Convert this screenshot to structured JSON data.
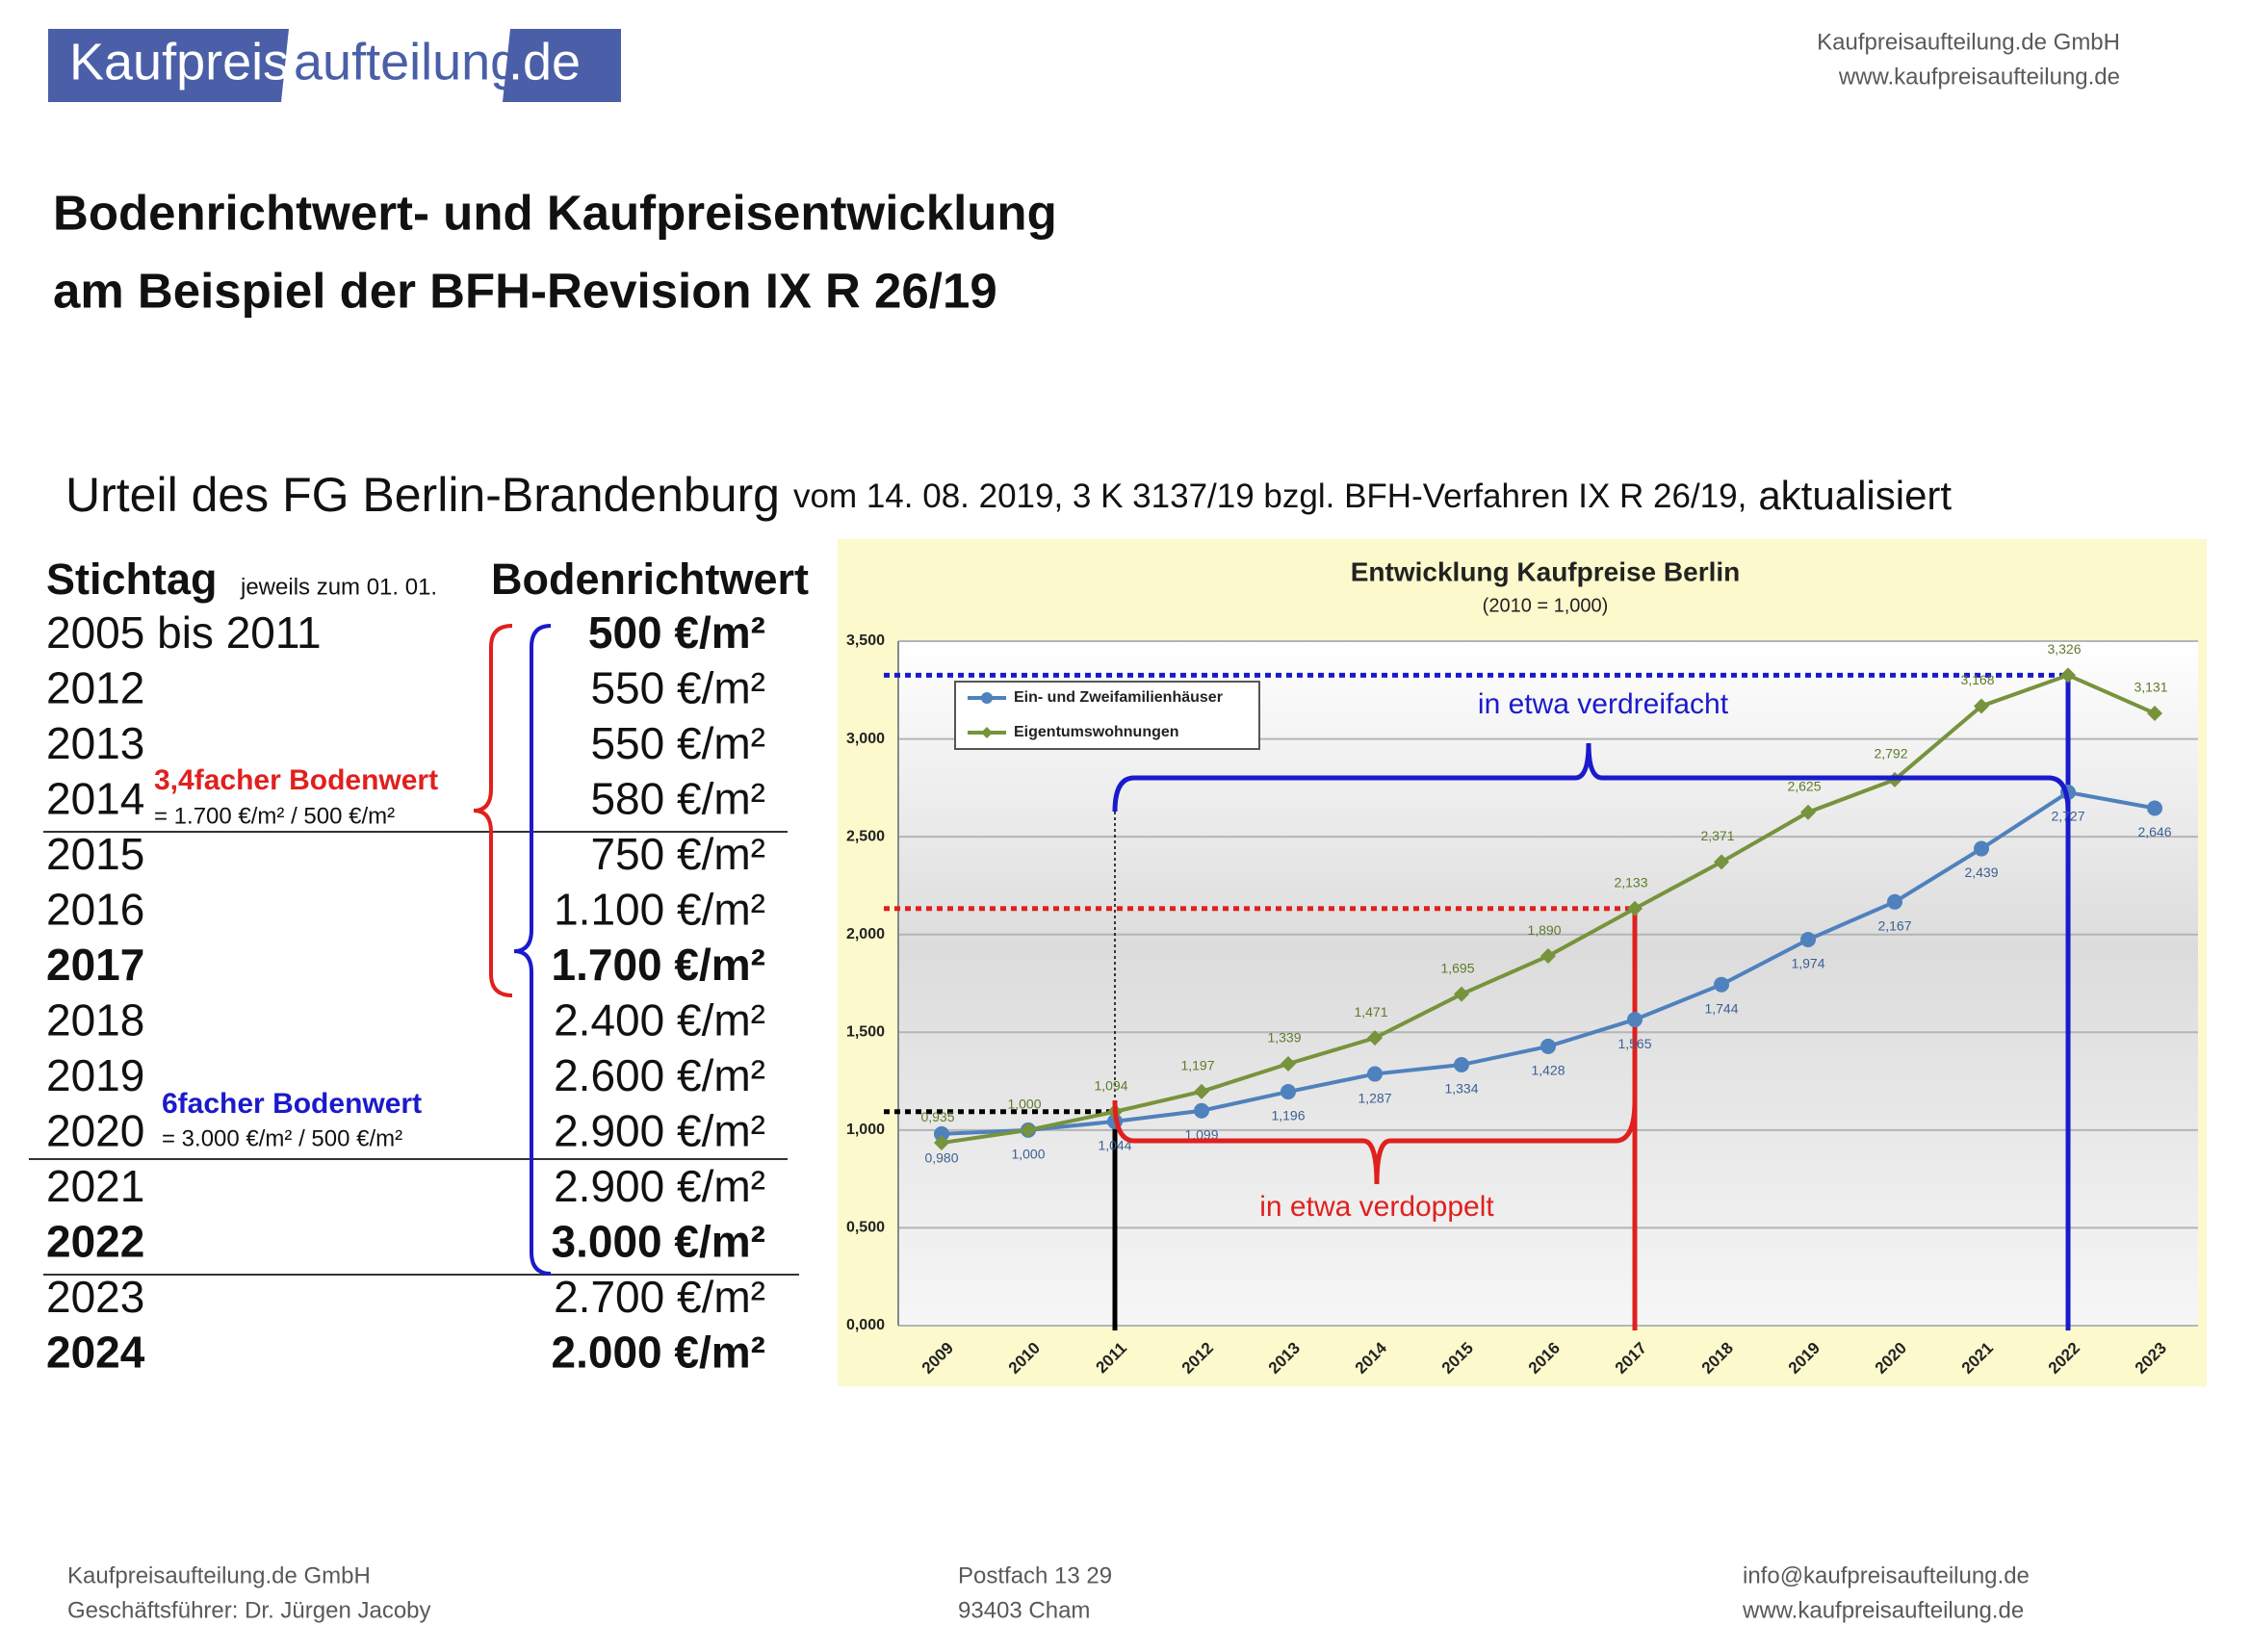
{
  "header": {
    "logo": [
      "Kaufpreis",
      "aufteilung",
      ".de"
    ],
    "company": "Kaufpreisaufteilung.de GmbH",
    "website": "www.kaufpreisaufteilung.de"
  },
  "title": [
    "Bodenrichtwert- und Kaufpreisentwicklung",
    "am Beispiel der BFH-Revision IX R 26/19"
  ],
  "subheading": {
    "main": "Urteil des FG Berlin-Brandenburg",
    "detail": "vom 14. 08. 2019, 3 K 3137/19 bzgl. BFH-Verfahren IX R 26/19,",
    "suffix": "aktualisiert"
  },
  "table": {
    "headers": [
      "Stichtag",
      "jeweils zum 01. 01.",
      "Bodenrichtwert"
    ],
    "rows": [
      [
        "2005 bis 2011",
        "500 €/m²"
      ],
      [
        "2012",
        "550 €/m²"
      ],
      [
        "2013",
        "550 €/m²"
      ],
      [
        "2014",
        "580 €/m²"
      ],
      [
        "2015",
        "750 €/m²"
      ],
      [
        "2016",
        "1.100 €/m²"
      ],
      [
        "2017",
        "1.700 €/m²"
      ],
      [
        "2018",
        "2.400 €/m²"
      ],
      [
        "2019",
        "2.600 €/m²"
      ],
      [
        "2020",
        "2.900 €/m²"
      ],
      [
        "2021",
        "2.900 €/m²"
      ],
      [
        "2022",
        "3.000 €/m²"
      ],
      [
        "2023",
        "2.700 €/m²"
      ],
      [
        "2024",
        "2.000 €/m²"
      ]
    ]
  },
  "notes": [
    {
      "label": "3,4facher Bodenwert",
      "formula": "= 1.700 €/m² / 500 €/m²"
    },
    {
      "label": "6facher Bodenwert",
      "formula": "= 3.000 €/m² / 500 €/m²"
    }
  ],
  "chart_data": {
    "type": "line",
    "title": "Entwicklung Kaufpreise Berlin",
    "subtitle": "(2010 = 1,000)",
    "categories": [
      "2009",
      "2010",
      "2011",
      "2012",
      "2013",
      "2014",
      "2015",
      "2016",
      "2017",
      "2018",
      "2019",
      "2020",
      "2021",
      "2022",
      "2023"
    ],
    "series": [
      {
        "name": "Ein- und Zweifamilienhäuser",
        "color": "#4f81bd",
        "values": [
          0.98,
          1.0,
          1.044,
          1.099,
          1.196,
          1.287,
          1.334,
          1.428,
          1.565,
          1.744,
          1.974,
          2.167,
          2.439,
          2.727,
          2.646
        ],
        "value_labels": [
          "0,980",
          "1,000",
          "1,044",
          "1,099",
          "1,196",
          "1,287",
          "1,334",
          "1,428",
          "1,565",
          "1,744",
          "1,974",
          "2,167",
          "2,439",
          "2,727",
          "2,646"
        ]
      },
      {
        "name": "Eigentumswohnungen",
        "color": "#77933c",
        "values": [
          0.935,
          1.0,
          1.094,
          1.197,
          1.339,
          1.471,
          1.695,
          1.89,
          2.133,
          2.371,
          2.625,
          2.792,
          3.168,
          3.326,
          3.131
        ],
        "value_labels": [
          "0,935",
          "1,000",
          "1,094",
          "1,197",
          "1,339",
          "1,471",
          "1,695",
          "1,890",
          "2,133",
          "2,371",
          "2,625",
          "2,792",
          "3,168",
          "3,326",
          "3,131"
        ]
      }
    ],
    "ylim": [
      0,
      3.5
    ],
    "yticks": [
      {
        "value": 0,
        "label": "0,000"
      },
      {
        "value": 0.5,
        "label": "0,500"
      },
      {
        "value": 1,
        "label": "1,000"
      },
      {
        "value": 1.5,
        "label": "1,500"
      },
      {
        "value": 2,
        "label": "2,000"
      },
      {
        "value": 2.5,
        "label": "2,500"
      },
      {
        "value": 3,
        "label": "3,000"
      },
      {
        "value": 3.5,
        "label": "3,500"
      }
    ],
    "grid": true,
    "legend": "upper left",
    "annotations": [
      "in etwa verdreifacht",
      "in etwa verdoppelt"
    ]
  },
  "footer": [
    [
      "Kaufpreisaufteilung.de GmbH",
      "Geschäftsführer: Dr. Jürgen Jacoby"
    ],
    [
      "Postfach 13 29",
      "93403 Cham"
    ],
    [
      "info@kaufpreisaufteilung.de",
      "www.kaufpreisaufteilung.de"
    ]
  ]
}
